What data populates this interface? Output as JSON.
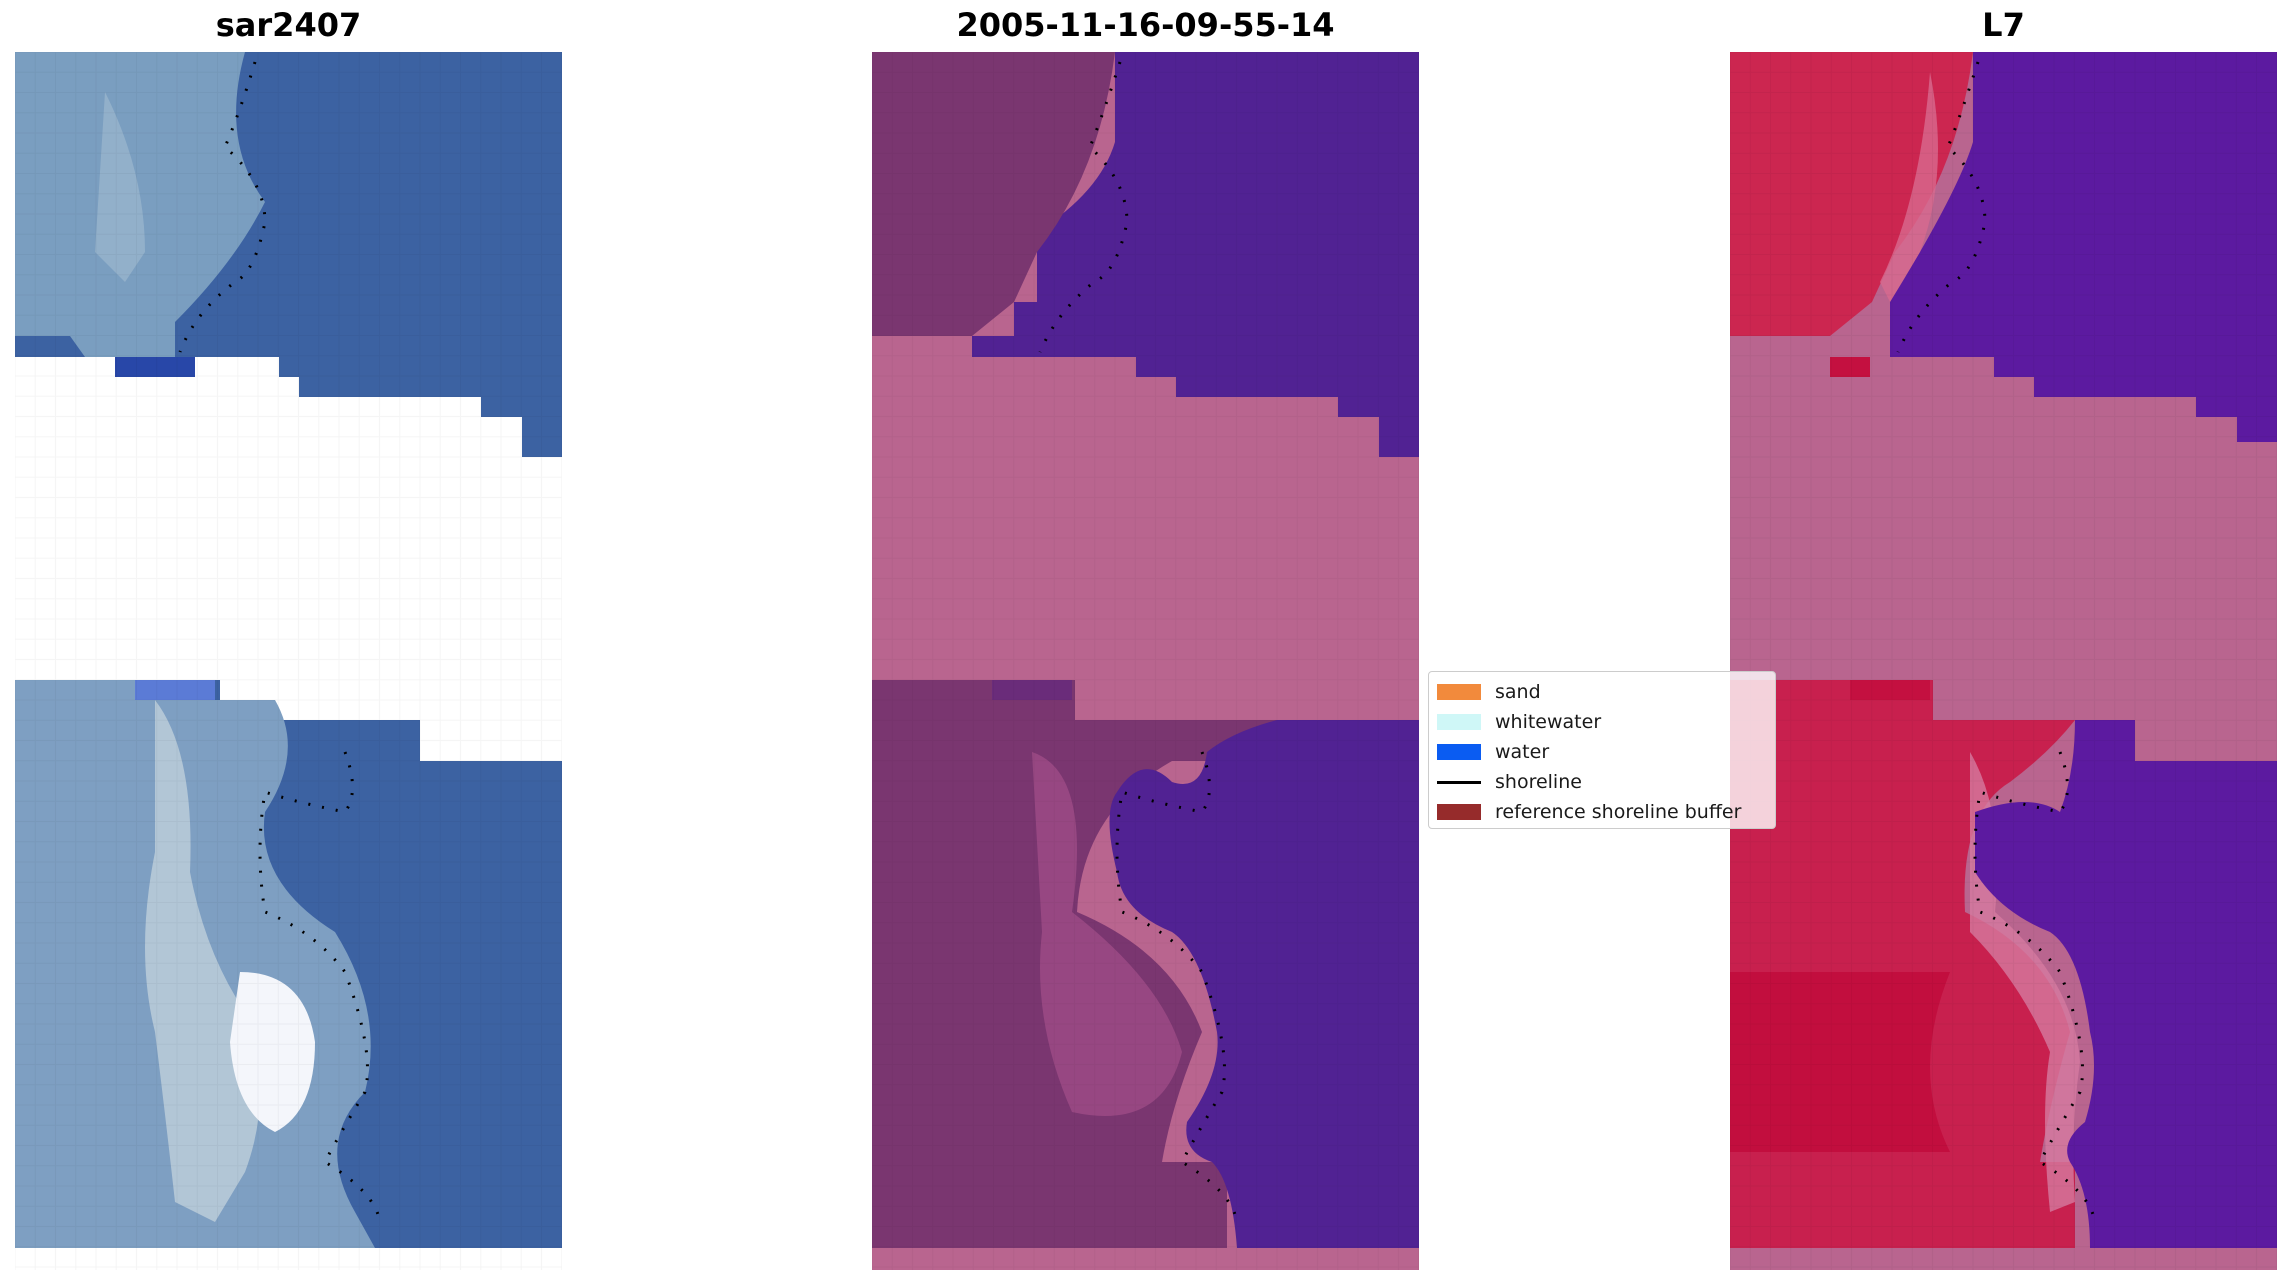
{
  "titles": {
    "left": "sar2407",
    "center": "2005-11-16-09-55-14",
    "right": "L7"
  },
  "legend": {
    "items": [
      {
        "label": "sand",
        "color": "#f28a3c",
        "kind": "patch"
      },
      {
        "label": "whitewater",
        "color": "#cff7f7",
        "kind": "patch"
      },
      {
        "label": "water",
        "color": "#0a5cf2",
        "kind": "patch"
      },
      {
        "label": "shoreline",
        "color": "#000000",
        "kind": "line"
      },
      {
        "label": "reference shoreline buffer",
        "color": "#962b2b",
        "kind": "patch"
      }
    ]
  },
  "colors": {
    "rgb_water": "#3c62a2",
    "rgb_land": "#7a9ec0",
    "class_water": "#512293",
    "class_land": "#7a3670",
    "class_nodata": "#b9658f",
    "ndwi_water": "#5c1aa0",
    "ndwi_land": "#cc2650",
    "ndwi_nodata": "#b9658f",
    "shoreline_dots": "#000000"
  }
}
